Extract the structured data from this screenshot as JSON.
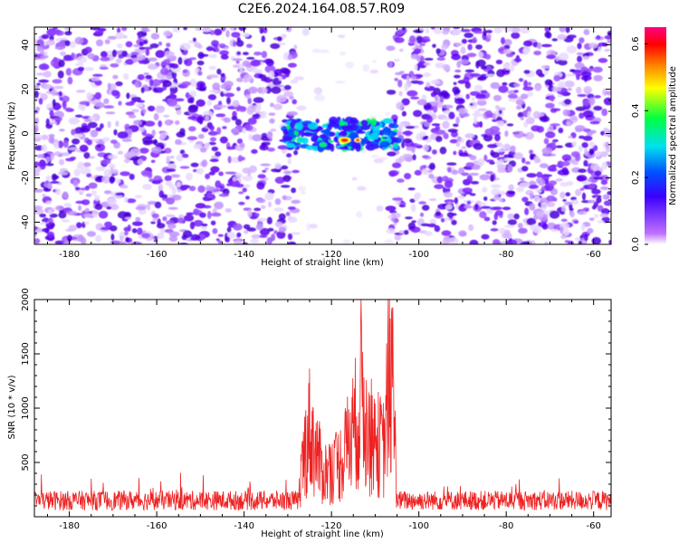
{
  "title": "C2E6.2024.164.08.57.R09",
  "chart_data": [
    {
      "type": "heatmap",
      "title": "C2E6.2024.164.08.57.R09",
      "xlabel": "Height of straight line (km)",
      "ylabel": "Frequency (Hz)",
      "xlim": [
        -188,
        -56
      ],
      "ylim": [
        -50,
        48
      ],
      "xticks": [
        -180,
        -160,
        -140,
        -120,
        -100,
        -80,
        -60
      ],
      "yticks": [
        -40,
        -20,
        0,
        20,
        40
      ],
      "colorbar": {
        "label": "Normalized spectral amplitude",
        "range": [
          0,
          0.65
        ],
        "ticks": [
          0.0,
          0.2,
          0.4,
          0.6
        ],
        "colormap": "rainbow (white → purple → blue → cyan → green → yellow → orange → red → pink)"
      },
      "features": [
        {
          "x_range": [
            -188,
            -129
          ],
          "y_range": [
            -50,
            48
          ],
          "amplitude": "0.0–0.2 noise (purple/blue)"
        },
        {
          "x_range": [
            -129,
            -106
          ],
          "y_range": [
            -50,
            48
          ],
          "amplitude": "near 0 (white)"
        },
        {
          "x_range": [
            -129,
            -106
          ],
          "y_range": [
            -7,
            6
          ],
          "amplitude": "0.1–0.35 signal (blue/cyan/green)"
        },
        {
          "x": -117,
          "y": -3,
          "amplitude": 0.55,
          "note": "peak (red/yellow)"
        },
        {
          "x_range": [
            -106,
            -56
          ],
          "y_range": [
            -50,
            48
          ],
          "amplitude": "0.0–0.2 noise (purple/blue)"
        }
      ]
    },
    {
      "type": "line",
      "xlabel": "Height of straight line (km)",
      "ylabel": "SNR (10 * v/v)",
      "xlim": [
        -188,
        -56
      ],
      "ylim": [
        0,
        2000
      ],
      "xticks": [
        -180,
        -160,
        -140,
        -120,
        -100,
        -80,
        -60
      ],
      "yticks": [
        500,
        1000,
        1500,
        2000
      ],
      "series": [
        {
          "color": "#ee2222",
          "x": [
            -188,
            -175,
            -160,
            -150,
            -140,
            -132,
            -128,
            -126,
            -125,
            -124,
            -122,
            -120,
            -118,
            -116,
            -114,
            -113,
            -112,
            -110,
            -108,
            -107,
            -106,
            -105,
            -104,
            -100,
            -90,
            -80,
            -70,
            -60,
            -56
          ],
          "y": [
            150,
            160,
            160,
            150,
            160,
            170,
            240,
            1000,
            1300,
            1050,
            650,
            700,
            800,
            1100,
            1450,
            2000,
            1250,
            1100,
            1000,
            1900,
            1950,
            300,
            200,
            170,
            165,
            160,
            160,
            160,
            150
          ],
          "notes": "dense noisy trace; baseline ~150 (range ~50–300), large spikes between -127 and -105 km"
        }
      ]
    }
  ],
  "colors": {
    "trace": "#ee2222",
    "frame": "#000000",
    "background": "#ffffff"
  }
}
